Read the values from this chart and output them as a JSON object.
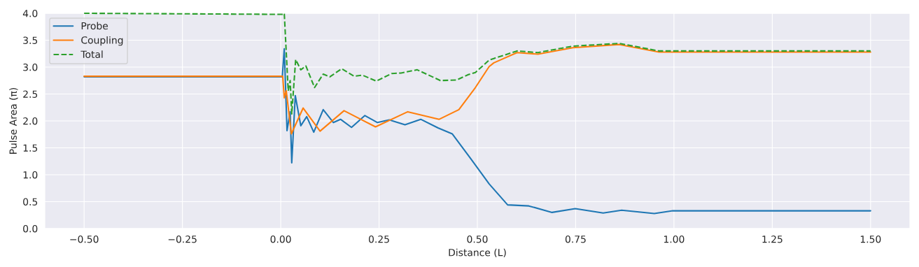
{
  "chart_data": {
    "type": "line",
    "xlabel": "Distance (L)",
    "ylabel": "Pulse Area (π)",
    "xlim": [
      -0.6,
      1.6
    ],
    "ylim": [
      0,
      4
    ],
    "xticks": [
      {
        "value": -0.5,
        "label": "−0.50"
      },
      {
        "value": -0.25,
        "label": "−0.25"
      },
      {
        "value": 0,
        "label": "0.00"
      },
      {
        "value": 0.25,
        "label": "0.25"
      },
      {
        "value": 0.5,
        "label": "0.50"
      },
      {
        "value": 0.75,
        "label": "0.75"
      },
      {
        "value": 1.0,
        "label": "1.00"
      },
      {
        "value": 1.25,
        "label": "1.25"
      },
      {
        "value": 1.5,
        "label": "1.50"
      }
    ],
    "yticks": [
      {
        "value": 0,
        "label": "0.0"
      },
      {
        "value": 0.5,
        "label": "0.5"
      },
      {
        "value": 1,
        "label": "1.0"
      },
      {
        "value": 1.5,
        "label": "1.5"
      },
      {
        "value": 2,
        "label": "2.0"
      },
      {
        "value": 2.5,
        "label": "2.5"
      },
      {
        "value": 3,
        "label": "3.0"
      },
      {
        "value": 3.5,
        "label": "3.5"
      },
      {
        "value": 4,
        "label": "4.0"
      }
    ],
    "grid": true,
    "legend": "top left",
    "series": [
      {
        "name": "Probe",
        "color": "#1f77b4",
        "line_style": "solid",
        "x": [
          -0.5,
          0.004,
          0.009,
          0.016,
          0.024,
          0.028,
          0.037,
          0.051,
          0.066,
          0.084,
          0.108,
          0.134,
          0.152,
          0.18,
          0.214,
          0.246,
          0.276,
          0.316,
          0.356,
          0.4,
          0.436,
          0.483,
          0.53,
          0.577,
          0.631,
          0.69,
          0.749,
          0.82,
          0.867,
          0.95,
          0.997,
          1.5
        ],
        "values": [
          2.82,
          2.82,
          3.34,
          1.82,
          2.17,
          1.22,
          2.47,
          1.91,
          2.08,
          1.79,
          2.21,
          1.97,
          2.03,
          1.88,
          2.1,
          1.97,
          2.02,
          1.93,
          2.03,
          1.87,
          1.76,
          1.3,
          0.83,
          0.44,
          0.42,
          0.3,
          0.37,
          0.29,
          0.34,
          0.28,
          0.33,
          0.33
        ]
      },
      {
        "name": "Coupling",
        "color": "#ff7f0e",
        "line_style": "solid",
        "x": [
          -0.5,
          0.005,
          0.009,
          0.014,
          0.027,
          0.057,
          0.1,
          0.161,
          0.241,
          0.323,
          0.403,
          0.453,
          0.495,
          0.53,
          0.542,
          0.601,
          0.654,
          0.743,
          0.861,
          0.962,
          1.5
        ],
        "values": [
          2.83,
          2.83,
          2.43,
          2.56,
          1.76,
          2.24,
          1.81,
          2.19,
          1.89,
          2.17,
          2.03,
          2.21,
          2.62,
          3.01,
          3.08,
          3.27,
          3.24,
          3.36,
          3.42,
          3.28,
          3.28
        ]
      },
      {
        "name": "Total",
        "color": "#2ca02c",
        "line_style": "dashed",
        "x": [
          -0.5,
          0.005,
          0.009,
          0.019,
          0.024,
          0.028,
          0.038,
          0.051,
          0.064,
          0.086,
          0.108,
          0.125,
          0.155,
          0.187,
          0.208,
          0.243,
          0.282,
          0.306,
          0.347,
          0.406,
          0.447,
          0.477,
          0.495,
          0.53,
          0.542,
          0.601,
          0.654,
          0.743,
          0.861,
          0.962,
          1.5
        ],
        "values": [
          4.0,
          3.98,
          4.0,
          2.56,
          2.75,
          2.13,
          3.14,
          2.95,
          3.02,
          2.62,
          2.87,
          2.82,
          2.97,
          2.83,
          2.85,
          2.74,
          2.88,
          2.89,
          2.95,
          2.75,
          2.76,
          2.86,
          2.9,
          3.13,
          3.16,
          3.3,
          3.27,
          3.39,
          3.44,
          3.3,
          3.3
        ]
      }
    ]
  }
}
